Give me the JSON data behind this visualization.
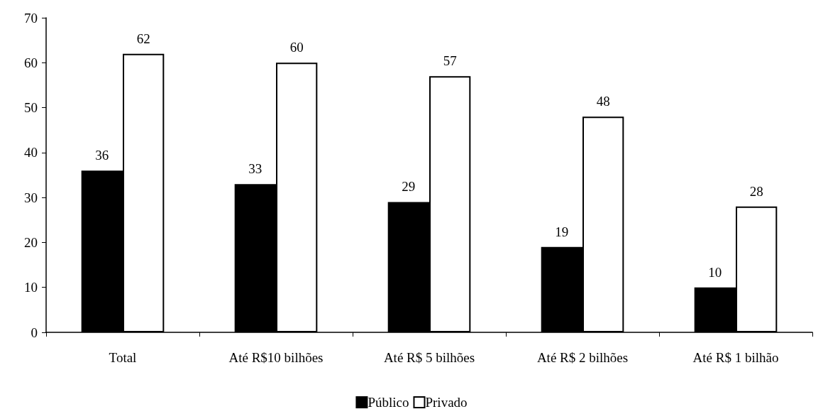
{
  "chart_data": {
    "type": "bar",
    "categories": [
      "Total",
      "Até R$10 bilhões",
      "Até R$ 5 bilhões",
      "Até R$ 2 bilhões",
      "Até R$ 1 bilhão"
    ],
    "series": [
      {
        "name": "Público",
        "color": "#000000",
        "values": [
          36,
          33,
          29,
          19,
          10
        ]
      },
      {
        "name": "Privado",
        "color": "#ffffff",
        "values": [
          62,
          60,
          57,
          48,
          28
        ]
      }
    ],
    "ylim": [
      0,
      70
    ],
    "yticks": [
      0,
      10,
      20,
      30,
      40,
      50,
      60,
      70
    ],
    "grid": false,
    "legend": "bottom",
    "data_labels": true
  }
}
